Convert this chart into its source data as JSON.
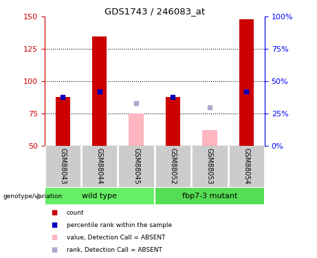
{
  "title": "GDS1743 / 246083_at",
  "samples": [
    "GSM88043",
    "GSM88044",
    "GSM88045",
    "GSM88052",
    "GSM88053",
    "GSM88054"
  ],
  "red_values": [
    88,
    135,
    75,
    88,
    62,
    148
  ],
  "blue_values": [
    88,
    92,
    83,
    88,
    80,
    92
  ],
  "absent": [
    false,
    false,
    true,
    false,
    true,
    false
  ],
  "ylim_left": [
    50,
    150
  ],
  "ylim_right": [
    0,
    100
  ],
  "yticks_left": [
    50,
    75,
    100,
    125,
    150
  ],
  "yticks_right": [
    0,
    25,
    50,
    75,
    100
  ],
  "bar_width": 0.4,
  "red_color": "#CC0000",
  "pink_color": "#FFB6C1",
  "blue_color": "#0000BB",
  "light_blue_color": "#AAAACC",
  "bg_label": "#CCCCCC",
  "geno_color_wt": "#66EE66",
  "geno_color_mut": "#55DD55",
  "legend_items": [
    {
      "color": "#CC0000",
      "label": "count"
    },
    {
      "color": "#0000BB",
      "label": "percentile rank within the sample"
    },
    {
      "color": "#FFB6C1",
      "label": "value, Detection Call = ABSENT"
    },
    {
      "color": "#AAAACC",
      "label": "rank, Detection Call = ABSENT"
    }
  ]
}
